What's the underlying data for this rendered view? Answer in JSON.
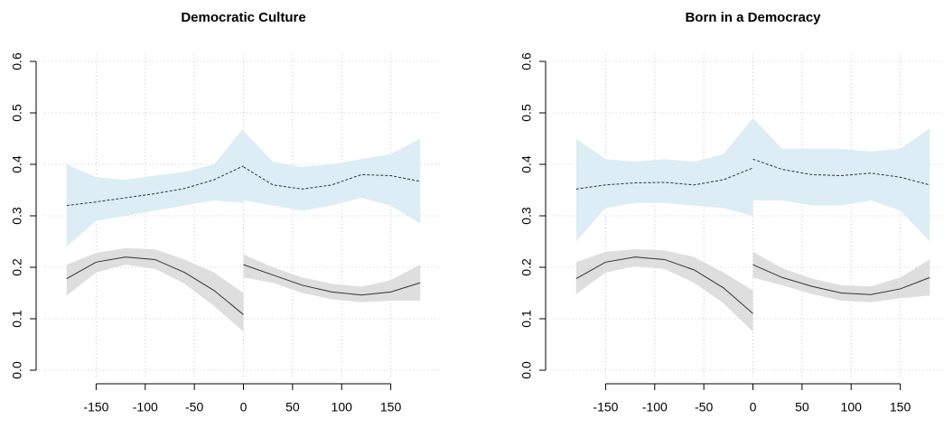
{
  "chart_data": [
    {
      "type": "line",
      "title": "Democratic Culture",
      "xlim": [
        -195,
        195
      ],
      "xticks": [
        -150,
        -100,
        -50,
        0,
        50,
        100,
        150
      ],
      "ylim": [
        0,
        0.6
      ],
      "yticks": [
        {
          "value": 0,
          "label": "0.0"
        },
        0.1,
        0.2,
        0.3,
        0.4,
        0.5,
        0.6
      ],
      "grid": true,
      "series": [
        {
          "color": "#333333",
          "band_color": "#dcedf5",
          "dash": true,
          "x": [
            -180,
            -150,
            -120,
            -90,
            -60,
            -30,
            0
          ],
          "values": [
            0.32,
            0.327,
            0.335,
            0.343,
            0.353,
            0.37,
            0.397
          ],
          "lower": [
            0.24,
            0.29,
            0.3,
            0.31,
            0.32,
            0.33,
            0.325
          ],
          "upper": [
            0.4,
            0.375,
            0.37,
            0.378,
            0.385,
            0.4,
            0.47
          ]
        },
        {
          "color": "#333333",
          "band_color": "#dcedf5",
          "dash": true,
          "x": [
            0,
            30,
            60,
            90,
            120,
            150,
            180
          ],
          "values": [
            0.395,
            0.36,
            0.352,
            0.36,
            0.38,
            0.378,
            0.367
          ],
          "lower": [
            0.33,
            0.32,
            0.31,
            0.32,
            0.335,
            0.32,
            0.285
          ],
          "upper": [
            0.465,
            0.405,
            0.395,
            0.4,
            0.41,
            0.42,
            0.45
          ]
        },
        {
          "color": "#333333",
          "band_color": "#dedede",
          "dash": false,
          "x": [
            -180,
            -150,
            -120,
            -90,
            -60,
            -30,
            0
          ],
          "values": [
            0.178,
            0.21,
            0.22,
            0.215,
            0.19,
            0.155,
            0.108
          ],
          "lower": [
            0.145,
            0.19,
            0.205,
            0.197,
            0.168,
            0.125,
            0.075
          ],
          "upper": [
            0.205,
            0.228,
            0.237,
            0.235,
            0.215,
            0.19,
            0.15
          ]
        },
        {
          "color": "#333333",
          "band_color": "#dedede",
          "dash": false,
          "x": [
            0,
            30,
            60,
            90,
            120,
            150,
            180
          ],
          "values": [
            0.205,
            0.185,
            0.165,
            0.152,
            0.146,
            0.152,
            0.17
          ],
          "lower": [
            0.18,
            0.17,
            0.15,
            0.138,
            0.132,
            0.135,
            0.135
          ],
          "upper": [
            0.225,
            0.2,
            0.18,
            0.168,
            0.162,
            0.175,
            0.205
          ]
        }
      ]
    },
    {
      "type": "line",
      "title": "Born in a Democracy",
      "xlim": [
        -195,
        195
      ],
      "xticks": [
        -150,
        -100,
        -50,
        0,
        50,
        100,
        150
      ],
      "ylim": [
        0,
        0.6
      ],
      "yticks": [
        {
          "value": 0,
          "label": "0.0"
        },
        0.1,
        0.2,
        0.3,
        0.4,
        0.5,
        0.6
      ],
      "grid": true,
      "series": [
        {
          "color": "#333333",
          "band_color": "#dcedf5",
          "dash": true,
          "x": [
            -180,
            -150,
            -120,
            -90,
            -60,
            -30,
            0
          ],
          "values": [
            0.352,
            0.36,
            0.364,
            0.365,
            0.36,
            0.37,
            0.393
          ],
          "lower": [
            0.25,
            0.315,
            0.325,
            0.325,
            0.32,
            0.315,
            0.3
          ],
          "upper": [
            0.45,
            0.41,
            0.405,
            0.41,
            0.405,
            0.42,
            0.49
          ]
        },
        {
          "color": "#333333",
          "band_color": "#dcedf5",
          "dash": true,
          "x": [
            0,
            30,
            60,
            90,
            120,
            150,
            180
          ],
          "values": [
            0.41,
            0.39,
            0.38,
            0.378,
            0.383,
            0.375,
            0.36
          ],
          "lower": [
            0.33,
            0.33,
            0.32,
            0.32,
            0.33,
            0.31,
            0.25
          ],
          "upper": [
            0.49,
            0.43,
            0.43,
            0.43,
            0.425,
            0.43,
            0.47
          ]
        },
        {
          "color": "#333333",
          "band_color": "#dedede",
          "dash": false,
          "x": [
            -180,
            -150,
            -120,
            -90,
            -60,
            -30,
            0
          ],
          "values": [
            0.178,
            0.21,
            0.22,
            0.215,
            0.195,
            0.16,
            0.11
          ],
          "lower": [
            0.148,
            0.19,
            0.202,
            0.197,
            0.17,
            0.13,
            0.075
          ],
          "upper": [
            0.21,
            0.23,
            0.235,
            0.233,
            0.22,
            0.19,
            0.155
          ]
        },
        {
          "color": "#333333",
          "band_color": "#dedede",
          "dash": false,
          "x": [
            0,
            30,
            60,
            90,
            120,
            150,
            180
          ],
          "values": [
            0.205,
            0.18,
            0.163,
            0.15,
            0.147,
            0.158,
            0.18
          ],
          "lower": [
            0.18,
            0.165,
            0.148,
            0.135,
            0.132,
            0.14,
            0.145
          ],
          "upper": [
            0.23,
            0.198,
            0.178,
            0.165,
            0.163,
            0.18,
            0.215
          ]
        }
      ]
    }
  ]
}
